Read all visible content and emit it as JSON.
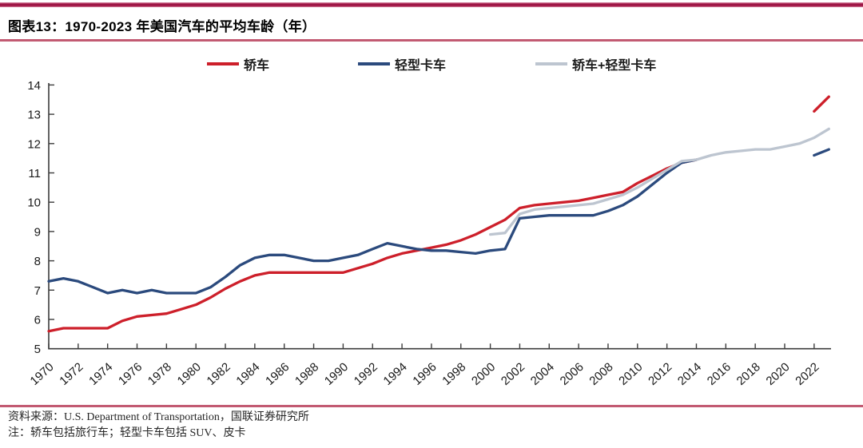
{
  "page": {
    "title": "图表13：1970-2023 年美国汽车的平均车龄（年）"
  },
  "legend": [
    {
      "label": "轿车",
      "color": "#cd1f2a"
    },
    {
      "label": "轻型卡车",
      "color": "#2b4a7d"
    },
    {
      "label": "轿车+轻型卡车",
      "color": "#bdc5d0"
    }
  ],
  "footer": {
    "source": "资料来源：U.S. Department of Transportation，国联证券研究所",
    "note": "注：轿车包括旅行车；轻型卡车包括 SUV、皮卡"
  },
  "colors": {
    "accent_bar": "#9e1444",
    "rule": "#c25a72",
    "axis": "#3c3c3c",
    "tick_label": "#1a1a1a"
  },
  "chart_data": {
    "type": "line",
    "title": "1970-2023 年美国汽车的平均车龄（年）",
    "xlabel": "",
    "ylabel": "年",
    "ylim": [
      5,
      14
    ],
    "y_ticks": [
      5,
      6,
      7,
      8,
      9,
      10,
      11,
      12,
      13,
      14
    ],
    "grid": false,
    "legend_position": "top",
    "x_years": [
      1970,
      1971,
      1972,
      1973,
      1974,
      1975,
      1976,
      1977,
      1978,
      1979,
      1980,
      1981,
      1982,
      1983,
      1984,
      1985,
      1986,
      1987,
      1988,
      1989,
      1990,
      1991,
      1992,
      1993,
      1994,
      1995,
      1996,
      1997,
      1998,
      1999,
      2000,
      2001,
      2002,
      2003,
      2004,
      2005,
      2006,
      2007,
      2008,
      2009,
      2010,
      2011,
      2012,
      2013,
      2014,
      2015,
      2016,
      2017,
      2018,
      2019,
      2020,
      2021,
      2022,
      2023
    ],
    "x_tick_years": [
      1970,
      1972,
      1974,
      1976,
      1978,
      1980,
      1982,
      1984,
      1986,
      1988,
      1990,
      1992,
      1994,
      1996,
      1998,
      2000,
      2002,
      2004,
      2006,
      2008,
      2010,
      2012,
      2014,
      2016,
      2018,
      2020,
      2022
    ],
    "series": [
      {
        "name": "轿车",
        "color": "#cd1f2a",
        "values": [
          5.6,
          5.7,
          5.7,
          5.7,
          5.7,
          5.95,
          6.1,
          6.15,
          6.2,
          6.35,
          6.5,
          6.75,
          7.05,
          7.3,
          7.5,
          7.6,
          7.6,
          7.6,
          7.6,
          7.6,
          7.6,
          7.75,
          7.9,
          8.1,
          8.25,
          8.35,
          8.45,
          8.55,
          8.7,
          8.9,
          9.15,
          9.4,
          9.8,
          9.9,
          9.95,
          10.0,
          10.05,
          10.15,
          10.25,
          10.35,
          10.65,
          10.9,
          11.15,
          11.35,
          11.45,
          null,
          null,
          null,
          null,
          null,
          null,
          null,
          13.1,
          13.6
        ]
      },
      {
        "name": "轻型卡车",
        "color": "#2b4a7d",
        "values": [
          7.3,
          7.4,
          7.3,
          7.1,
          6.9,
          7.0,
          6.9,
          7.0,
          6.9,
          6.9,
          6.9,
          7.1,
          7.45,
          7.85,
          8.1,
          8.2,
          8.2,
          8.1,
          8.0,
          8.0,
          8.1,
          8.2,
          8.4,
          8.6,
          8.5,
          8.4,
          8.35,
          8.35,
          8.3,
          8.25,
          8.35,
          8.4,
          9.45,
          9.5,
          9.55,
          9.55,
          9.55,
          9.55,
          9.7,
          9.9,
          10.2,
          10.6,
          11.0,
          11.35,
          11.45,
          null,
          null,
          null,
          null,
          null,
          null,
          null,
          11.6,
          11.8
        ]
      },
      {
        "name": "轿车+轻型卡车",
        "color": "#bdc5d0",
        "values": [
          null,
          null,
          null,
          null,
          null,
          null,
          null,
          null,
          null,
          null,
          null,
          null,
          null,
          null,
          null,
          null,
          null,
          null,
          null,
          null,
          null,
          null,
          null,
          null,
          null,
          null,
          null,
          null,
          null,
          null,
          8.9,
          8.95,
          9.6,
          9.75,
          9.8,
          9.85,
          9.9,
          9.95,
          10.1,
          10.25,
          10.5,
          10.8,
          11.1,
          11.4,
          11.45,
          11.6,
          11.7,
          11.75,
          11.8,
          11.8,
          11.9,
          12.0,
          12.2,
          12.5
        ]
      }
    ]
  }
}
